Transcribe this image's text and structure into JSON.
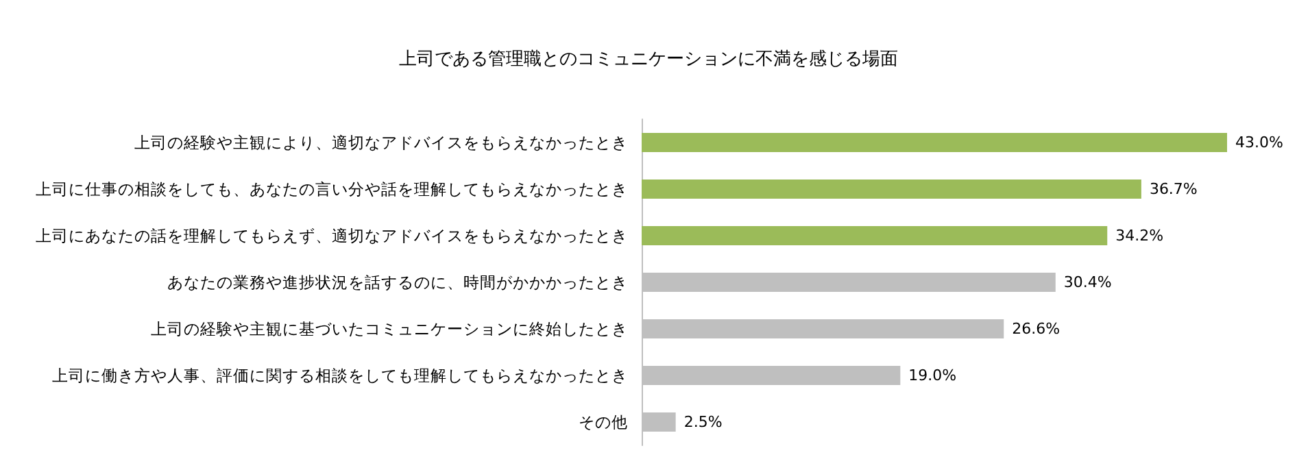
{
  "chart_data": {
    "type": "bar",
    "orientation": "horizontal",
    "title": "上司である管理職とのコミュニケーションに不満を感じる場面",
    "categories": [
      "上司の経験や主観により、適切なアドバイスをもらえなかったとき",
      "上司に仕事の相談をしても、あなたの言い分や話を理解してもらえなかったとき",
      "上司にあなたの話を理解してもらえず、適切なアドバイスをもらえなかったとき",
      "あなたの業務や進捗状況を話するのに、時間がかかかったとき",
      "上司の経験や主観に基づいたコミュニケーションに終始したとき",
      "上司に働き方や人事、評価に関する相談をしても理解してもらえなかったとき",
      "その他"
    ],
    "values": [
      43.0,
      36.7,
      34.2,
      30.4,
      26.6,
      19.0,
      2.5
    ],
    "colors": [
      "#9bbb59",
      "#9bbb59",
      "#9bbb59",
      "#bfbfbf",
      "#bfbfbf",
      "#bfbfbf",
      "#bfbfbf"
    ],
    "value_labels": [
      "43.0%",
      "36.7%",
      "34.2%",
      "30.4%",
      "26.6%",
      "19.0%",
      "2.5%"
    ],
    "grid": false
  }
}
